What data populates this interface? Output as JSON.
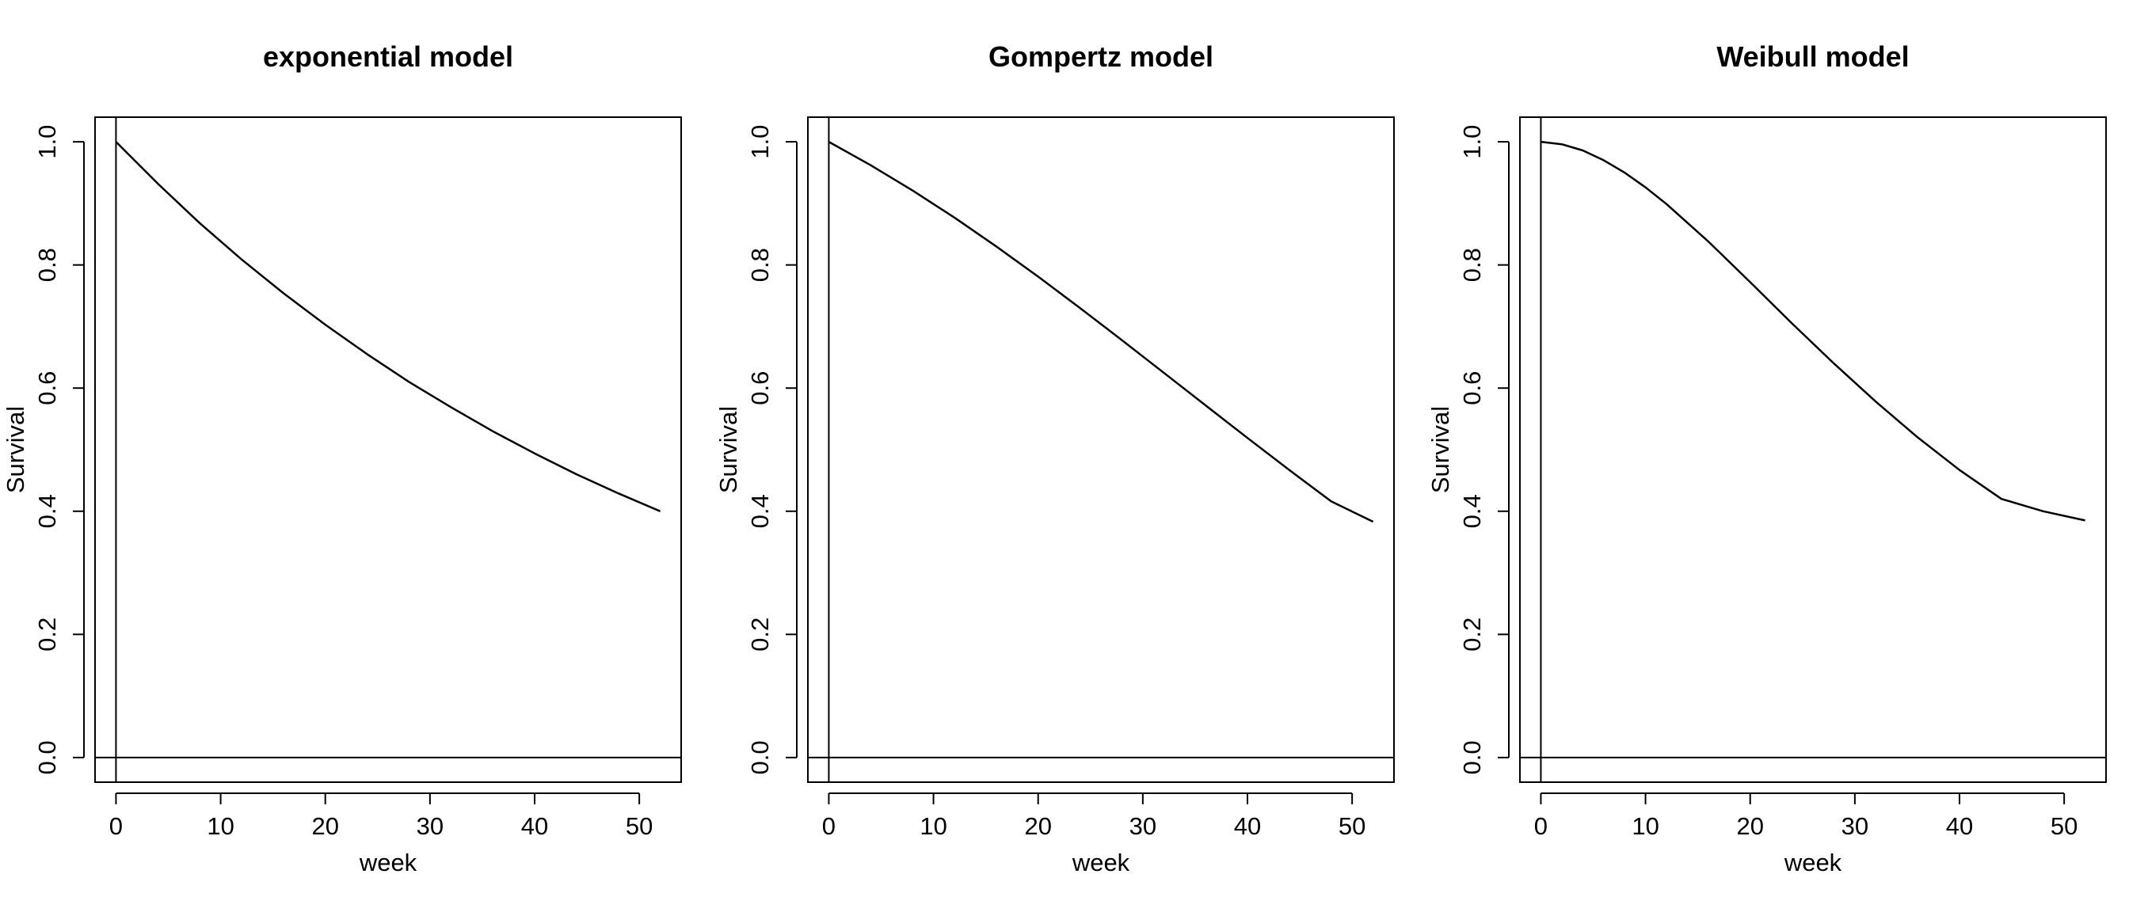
{
  "chart_data": [
    {
      "type": "line",
      "title": "exponential model",
      "xlabel": "week",
      "ylabel": "Survival",
      "xlim": [
        -2,
        54
      ],
      "ylim": [
        -0.04,
        1.04
      ],
      "xticks": [
        0,
        10,
        20,
        30,
        40,
        50
      ],
      "yticks": [
        "0.0",
        "0.2",
        "0.4",
        "0.6",
        "0.8",
        "1.0"
      ],
      "reference_lines": {
        "vertical_x": 0,
        "horizontal_y": 0
      },
      "grid": false,
      "x": [
        0,
        4,
        8,
        12,
        16,
        20,
        24,
        28,
        32,
        36,
        40,
        44,
        48,
        52
      ],
      "y": [
        1.0,
        0.932,
        0.868,
        0.809,
        0.754,
        0.703,
        0.655,
        0.61,
        0.569,
        0.53,
        0.494,
        0.46,
        0.429,
        0.4
      ]
    },
    {
      "type": "line",
      "title": "Gompertz model",
      "xlabel": "week",
      "ylabel": "Survival",
      "xlim": [
        -2,
        54
      ],
      "ylim": [
        -0.04,
        1.04
      ],
      "xticks": [
        0,
        10,
        20,
        30,
        40,
        50
      ],
      "yticks": [
        "0.0",
        "0.2",
        "0.4",
        "0.6",
        "0.8",
        "1.0"
      ],
      "reference_lines": {
        "vertical_x": 0,
        "horizontal_y": 0
      },
      "grid": false,
      "x": [
        0,
        4,
        8,
        12,
        16,
        20,
        24,
        28,
        32,
        36,
        40,
        44,
        48,
        52
      ],
      "y": [
        1.0,
        0.962,
        0.921,
        0.877,
        0.83,
        0.781,
        0.73,
        0.678,
        0.625,
        0.572,
        0.519,
        0.467,
        0.416,
        0.383
      ]
    },
    {
      "type": "line",
      "title": "Weibull model",
      "xlabel": "week",
      "ylabel": "Survival",
      "xlim": [
        -2,
        54
      ],
      "ylim": [
        -0.04,
        1.04
      ],
      "xticks": [
        0,
        10,
        20,
        30,
        40,
        50
      ],
      "yticks": [
        "0.0",
        "0.2",
        "0.4",
        "0.6",
        "0.8",
        "1.0"
      ],
      "reference_lines": {
        "vertical_x": 0,
        "horizontal_y": 0
      },
      "grid": false,
      "x": [
        0,
        2,
        4,
        6,
        8,
        10,
        12,
        16,
        20,
        24,
        28,
        32,
        36,
        40,
        44,
        48,
        52
      ],
      "y": [
        1.0,
        0.995,
        0.983,
        0.965,
        0.941,
        0.913,
        0.882,
        0.815,
        0.746,
        0.676,
        0.609,
        0.546,
        0.488,
        0.435,
        0.386,
        0.341,
        0.385
      ]
    }
  ]
}
